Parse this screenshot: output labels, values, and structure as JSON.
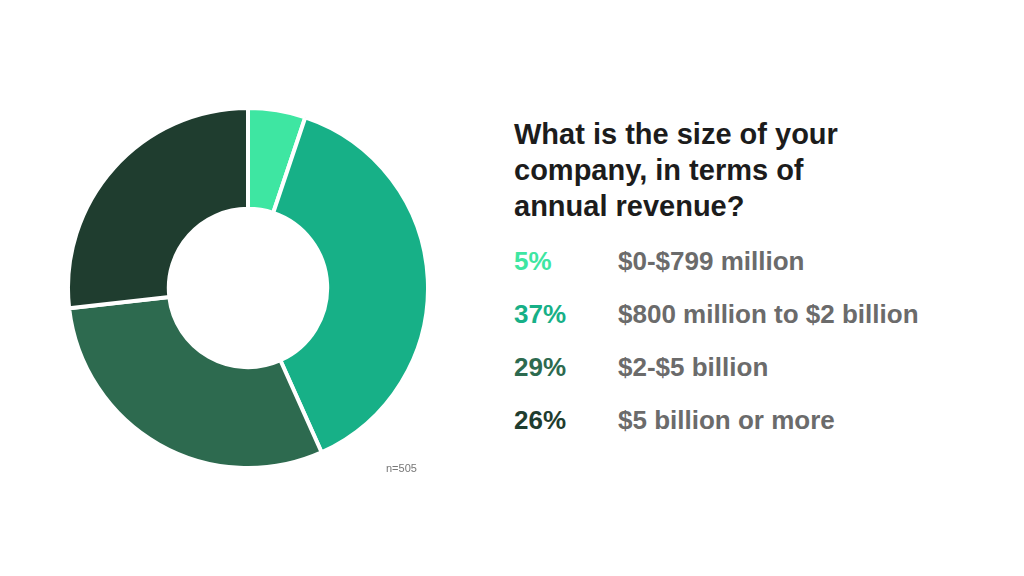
{
  "chart_data": {
    "type": "doughnut",
    "title": "What is the size of your company, in terms of annual revenue?",
    "categories": [
      "$0-$799 million",
      "$800 million to $2 billion",
      "$2-$5 billion",
      "$5 billion or more"
    ],
    "values": [
      5,
      37,
      29,
      26
    ],
    "value_labels": [
      "5%",
      "37%",
      "29%",
      "26%"
    ],
    "colors": [
      "#3ee6a2",
      "#17b087",
      "#2d6a4f",
      "#1f3d2f"
    ],
    "legend": "right",
    "annotations": [
      "n=505"
    ]
  }
}
